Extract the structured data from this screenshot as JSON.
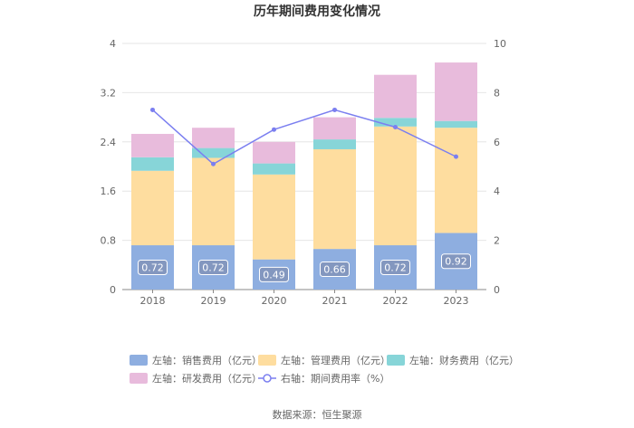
{
  "chart_data": {
    "type": "bar",
    "stacked": true,
    "title": "历年期间费用变化情况",
    "categories": [
      "2018",
      "2019",
      "2020",
      "2021",
      "2022",
      "2023"
    ],
    "left_axis": {
      "min": 0,
      "max": 4,
      "ticks": [
        "0",
        "0.8",
        "1.6",
        "2.4",
        "3.2",
        "4"
      ]
    },
    "right_axis": {
      "min": 0,
      "max": 10,
      "ticks": [
        "0",
        "2",
        "4",
        "6",
        "8",
        "10"
      ]
    },
    "series": [
      {
        "name": "左轴：销售费用（亿元）",
        "axis": "left",
        "color": "#8eaee0",
        "values": [
          0.72,
          0.72,
          0.49,
          0.66,
          0.72,
          0.92
        ],
        "labels": [
          "0.72",
          "0.72",
          "0.49",
          "0.66",
          "0.72",
          "0.92"
        ]
      },
      {
        "name": "左轴：管理费用（亿元）",
        "axis": "left",
        "color": "#fedd9f",
        "values": [
          1.21,
          1.42,
          1.38,
          1.62,
          1.93,
          1.71
        ]
      },
      {
        "name": "左轴：财务费用（亿元）",
        "axis": "left",
        "color": "#87d5d8",
        "values": [
          0.22,
          0.16,
          0.18,
          0.16,
          0.14,
          0.11
        ]
      },
      {
        "name": "左轴：研发费用（亿元）",
        "axis": "left",
        "color": "#e8bbdc",
        "values": [
          0.38,
          0.33,
          0.35,
          0.36,
          0.7,
          0.95
        ]
      },
      {
        "name": "右轴：期间费用率（%）",
        "axis": "right",
        "type": "line",
        "color": "#7b7ff0",
        "values": [
          7.3,
          5.1,
          6.5,
          7.3,
          6.6,
          5.4
        ]
      }
    ],
    "source": "数据来源：恒生聚源"
  }
}
